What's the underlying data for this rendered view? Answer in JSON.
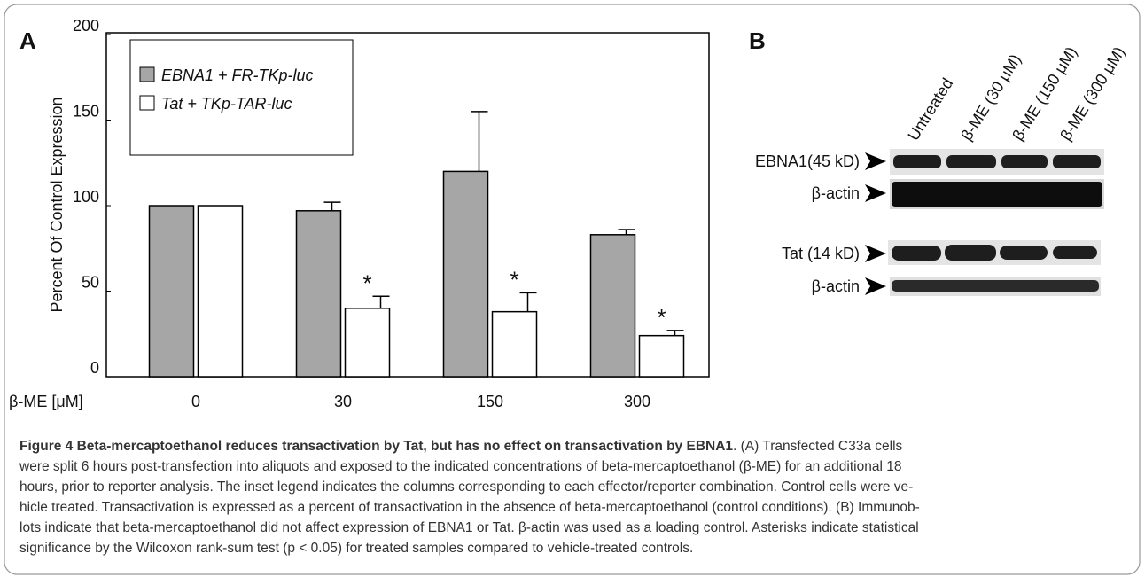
{
  "panel_a_label": "A",
  "chart_data": {
    "type": "bar",
    "y_label": "Percent Of Control Expression",
    "x_label": "β-ME [μM]",
    "categories": [
      "0",
      "30",
      "150",
      "300"
    ],
    "series": [
      {
        "name": "EBNA1 + FR-TKp-luc",
        "color": "#a6a6a6",
        "values": [
          100,
          97,
          120,
          83
        ],
        "errors": [
          null,
          5,
          35,
          3
        ],
        "annotations": [
          null,
          null,
          null,
          null
        ]
      },
      {
        "name": "Tat + TKp-TAR-luc",
        "color": "#ffffff",
        "values": [
          100,
          40,
          38,
          24
        ],
        "errors": [
          null,
          7,
          11,
          3
        ],
        "annotations": [
          null,
          "*",
          "*",
          "*"
        ]
      }
    ],
    "ylim": [
      0,
      200
    ],
    "yticks": [
      0,
      50,
      100,
      150,
      200
    ],
    "grid": false,
    "legend": "upper left"
  },
  "panel_b": {
    "label": "B",
    "lanes": [
      "Untreated",
      "β-ME (30 μM)",
      "β-ME (150 μM)",
      "β-ME (300 μM)"
    ],
    "rows": [
      "EBNA1(45 kD)",
      "β-actin",
      "Tat (14 kD)",
      "β-actin"
    ]
  },
  "caption": {
    "heading": "Figure 4 Beta-mercaptoethanol reduces transactivation by Tat, but has no effect on transactivation by EBNA1",
    "lines": [
      ". (A) Transfected C33a cells",
      "were split 6 hours post-transfection into aliquots and exposed to the indicated concentrations of beta-mercaptoethanol (β-ME) for an additional 18",
      "hours, prior to reporter analysis. The inset legend indicates the columns corresponding to each effector/reporter combination. Control cells were ve-",
      "hicle treated. Transactivation is expressed as a percent of transactivation in the absence of beta-mercaptoethanol (control conditions). (B) Immunob-",
      "lots indicate that beta-mercaptoethanol did not affect expression of EBNA1 or Tat. β-actin was used as a loading control. Asterisks indicate statistical",
      "significance by the Wilcoxon rank-sum test (p < 0.05) for treated samples compared to vehicle-treated controls."
    ]
  }
}
